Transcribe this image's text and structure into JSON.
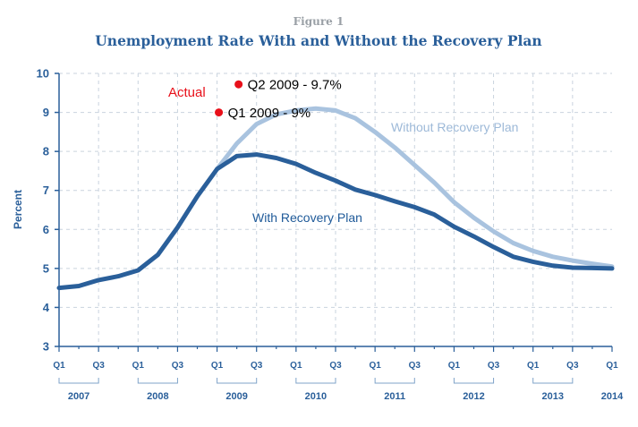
{
  "chart_data": {
    "type": "line",
    "figure_label": "Figure 1",
    "title": "Unemployment Rate With and Without the Recovery Plan",
    "ylabel": "Percent",
    "xlabel": "",
    "ylim": [
      3,
      10
    ],
    "yticks": [
      "3",
      "4",
      "5",
      "6",
      "7",
      "8",
      "9",
      "10"
    ],
    "grid": true,
    "quarter_ticks": [
      "Q1",
      "Q3",
      "Q1",
      "Q3",
      "Q1",
      "Q3",
      "Q1",
      "Q3",
      "Q1",
      "Q3",
      "Q1",
      "Q3",
      "Q1",
      "Q3",
      "Q1"
    ],
    "years": [
      "2007",
      "2008",
      "2009",
      "2010",
      "2011",
      "2012",
      "2013",
      "2014"
    ],
    "series": [
      {
        "name": "Without Recovery Plan",
        "label": "Without Recovery Plan",
        "color": "#a9c3df",
        "x": [
          8,
          9,
          10,
          11,
          12,
          13,
          14,
          15,
          16,
          17,
          18,
          19,
          20,
          21,
          22,
          23,
          24,
          25,
          26,
          27,
          28
        ],
        "values": [
          7.55,
          8.2,
          8.7,
          8.95,
          9.05,
          9.1,
          9.05,
          8.85,
          8.5,
          8.1,
          7.65,
          7.2,
          6.7,
          6.3,
          5.95,
          5.65,
          5.45,
          5.3,
          5.2,
          5.12,
          5.05
        ]
      },
      {
        "name": "With Recovery Plan",
        "label": "With Recovery Plan",
        "color": "#2a5f9a",
        "x": [
          0,
          1,
          2,
          3,
          4,
          5,
          6,
          7,
          8,
          9,
          10,
          11,
          12,
          13,
          14,
          15,
          16,
          17,
          18,
          19,
          20,
          21,
          22,
          23,
          24,
          25,
          26,
          27,
          28
        ],
        "values": [
          4.5,
          4.55,
          4.7,
          4.8,
          4.95,
          5.35,
          6.05,
          6.85,
          7.55,
          7.88,
          7.92,
          7.83,
          7.68,
          7.45,
          7.25,
          7.02,
          6.88,
          6.72,
          6.57,
          6.38,
          6.07,
          5.82,
          5.55,
          5.3,
          5.17,
          5.07,
          5.02,
          5.01,
          5.0
        ]
      }
    ],
    "annotations": {
      "actual_label": "Actual",
      "points": [
        {
          "label": "Q1 2009 - 9%",
          "x": 8,
          "value": 9.0,
          "color": "#e8101a"
        },
        {
          "label": "Q2 2009 - 9.7%",
          "x": 9,
          "value": 9.72,
          "color": "#e8101a"
        }
      ]
    }
  }
}
